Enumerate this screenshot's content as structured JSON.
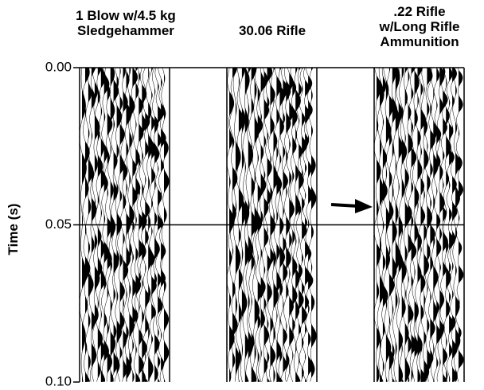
{
  "panels": [
    {
      "title": [
        "1 Blow w/4.5 kg",
        "Sledgehammer"
      ]
    },
    {
      "title": [
        "30.06 Rifle"
      ]
    },
    {
      "title": [
        ".22 Rifle",
        "w/Long Rifle",
        "Ammunition"
      ]
    }
  ],
  "y_axis": {
    "label": "Time (s)",
    "range": [
      0,
      0.1
    ],
    "ticks": [
      {
        "value": 0,
        "label": "0.00"
      },
      {
        "value": 0.05,
        "label": "0.05"
      },
      {
        "value": 0.1,
        "label": "0.10"
      }
    ]
  }
}
